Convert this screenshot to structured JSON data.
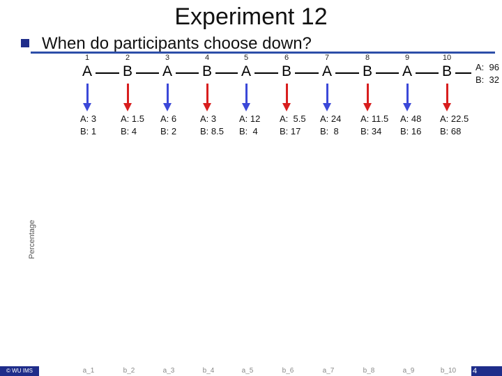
{
  "slide": {
    "title": "Experiment 12",
    "question": "When do participants choose down?",
    "y_axis_label": "Percentage",
    "footer_left": "© WU IMS",
    "page_number": "4"
  },
  "game": {
    "stages": [
      {
        "num": "1",
        "player": "A",
        "payoff_a": "A: 3",
        "payoff_b": "B: 1"
      },
      {
        "num": "2",
        "player": "B",
        "payoff_a": "A: 1.5",
        "payoff_b": "B: 4"
      },
      {
        "num": "3",
        "player": "A",
        "payoff_a": "A: 6",
        "payoff_b": "B: 2"
      },
      {
        "num": "4",
        "player": "B",
        "payoff_a": "A: 3",
        "payoff_b": "B: 8.5"
      },
      {
        "num": "5",
        "player": "A",
        "payoff_a": "A: 12",
        "payoff_b": "B:  4"
      },
      {
        "num": "6",
        "player": "B",
        "payoff_a": "A:  5.5",
        "payoff_b": "B: 17"
      },
      {
        "num": "7",
        "player": "A",
        "payoff_a": "A: 24",
        "payoff_b": "B:  8"
      },
      {
        "num": "8",
        "player": "B",
        "payoff_a": "A: 11.5",
        "payoff_b": "B: 34"
      },
      {
        "num": "9",
        "player": "A",
        "payoff_a": "A: 48",
        "payoff_b": "B: 16"
      },
      {
        "num": "10",
        "player": "B",
        "payoff_a": "A: 22.5",
        "payoff_b": "B: 68"
      }
    ],
    "end_payoff_a": "A:  96",
    "end_payoff_b": "B:  32"
  },
  "x_labels": [
    "a_1",
    "b_2",
    "a_3",
    "b_4",
    "a_5",
    "b_6",
    "a_7",
    "b_8",
    "a_9",
    "b_10"
  ],
  "colors": {
    "player_a_arrow": "#3b48d8",
    "player_b_arrow": "#d81e1e",
    "accent": "#1f2d8a"
  }
}
